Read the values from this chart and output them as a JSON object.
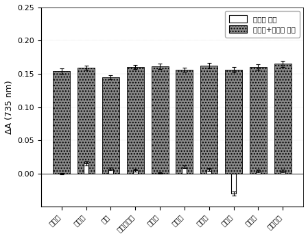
{
  "categories": [
    "啊虫脲",
    "辛硫磷",
    "乐果",
    "甲基对硫磷",
    "毒死蝶",
    "敌百虫",
    "敌敌畏",
    "丙渴磷",
    "甲拌磷",
    "水胺硫磷"
  ],
  "white_bars": [
    0.0,
    0.015,
    0.007,
    0.005,
    0.001,
    0.01,
    0.006,
    -0.03,
    0.004,
    0.004
  ],
  "white_errors": [
    0.001,
    0.003,
    0.002,
    0.002,
    0.001,
    0.002,
    0.002,
    0.003,
    0.002,
    0.002
  ],
  "dark_bars": [
    0.154,
    0.159,
    0.145,
    0.16,
    0.161,
    0.156,
    0.162,
    0.156,
    0.16,
    0.165
  ],
  "dark_errors": [
    0.004,
    0.003,
    0.003,
    0.003,
    0.004,
    0.003,
    0.004,
    0.004,
    0.004,
    0.005
  ],
  "ylabel": "ΔA (735 nm)",
  "ylim": [
    -0.05,
    0.25
  ],
  "yticks": [
    0.0,
    0.05,
    0.1,
    0.15,
    0.2,
    0.25
  ],
  "legend_white": "竞争性 靶标",
  "legend_dark": "啊虫脲+竞争性 靶标",
  "bar_width": 0.35,
  "white_color": "#ffffff",
  "dark_color": "#888888",
  "edge_color": "#000000",
  "background_color": "#ffffff",
  "hatch_dark": "...."
}
